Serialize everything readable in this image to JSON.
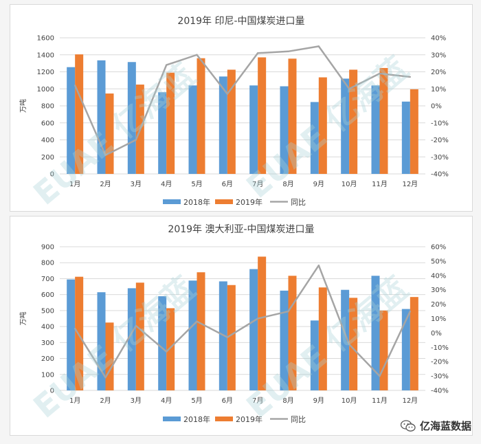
{
  "watermark": {
    "brand": "EUAE",
    "cn": "亿海蓝"
  },
  "brand": {
    "label": "亿海蓝数据",
    "icon": "wechat-logo-icon"
  },
  "colors": {
    "s2018": "#5b9bd5",
    "s2019": "#ed7d31",
    "yoy": "#a5a5a5"
  },
  "chart_data": [
    {
      "type": "bar",
      "title": "2019年 印尼-中国煤炭进口量",
      "ylabel": "万吨",
      "categories": [
        "1月",
        "2月",
        "3月",
        "4月",
        "5月",
        "6月",
        "7月",
        "8月",
        "9月",
        "10月",
        "11月",
        "12月"
      ],
      "ylim": [
        0,
        1600
      ],
      "yticks": [
        0,
        200,
        400,
        600,
        800,
        1000,
        1200,
        1400,
        1600
      ],
      "y2lim": [
        -40,
        40
      ],
      "y2ticks": [
        -40,
        -30,
        -20,
        -10,
        0,
        10,
        20,
        30,
        40
      ],
      "series": [
        {
          "name": "2018年",
          "kind": "bar",
          "values": [
            1255,
            1335,
            1315,
            960,
            1040,
            1145,
            1040,
            1030,
            845,
            1120,
            1040,
            850
          ]
        },
        {
          "name": "2019年",
          "kind": "bar",
          "values": [
            1405,
            945,
            1050,
            1190,
            1360,
            1225,
            1370,
            1355,
            1135,
            1225,
            1245,
            995
          ]
        },
        {
          "name": "同比",
          "kind": "line",
          "axis": "right",
          "values": [
            12,
            -29,
            -20,
            24,
            30,
            7,
            31,
            32,
            35,
            10,
            19,
            17
          ]
        }
      ],
      "legend": "bottom"
    },
    {
      "type": "bar",
      "title": "2019年 澳大利亚-中国煤炭进口量",
      "ylabel": "万吨",
      "categories": [
        "1月",
        "2月",
        "3月",
        "4月",
        "5月",
        "6月",
        "7月",
        "8月",
        "9月",
        "10月",
        "11月",
        "12月"
      ],
      "ylim": [
        0,
        900
      ],
      "yticks": [
        0,
        100,
        200,
        300,
        400,
        500,
        600,
        700,
        800,
        900
      ],
      "y2lim": [
        -40,
        60
      ],
      "y2ticks": [
        -40,
        -30,
        -20,
        -10,
        0,
        10,
        20,
        30,
        40,
        50,
        60
      ],
      "series": [
        {
          "name": "2018年",
          "kind": "bar",
          "values": [
            695,
            615,
            640,
            590,
            688,
            683,
            760,
            625,
            438,
            630,
            718,
            510
          ]
        },
        {
          "name": "2019年",
          "kind": "bar",
          "values": [
            712,
            425,
            675,
            515,
            740,
            660,
            838,
            718,
            645,
            580,
            500,
            585
          ]
        },
        {
          "name": "同比",
          "kind": "line",
          "axis": "right",
          "values": [
            3,
            -31,
            5,
            -13,
            8,
            -3,
            10,
            15,
            47,
            -8,
            -30,
            15
          ]
        }
      ],
      "legend": "bottom"
    }
  ]
}
